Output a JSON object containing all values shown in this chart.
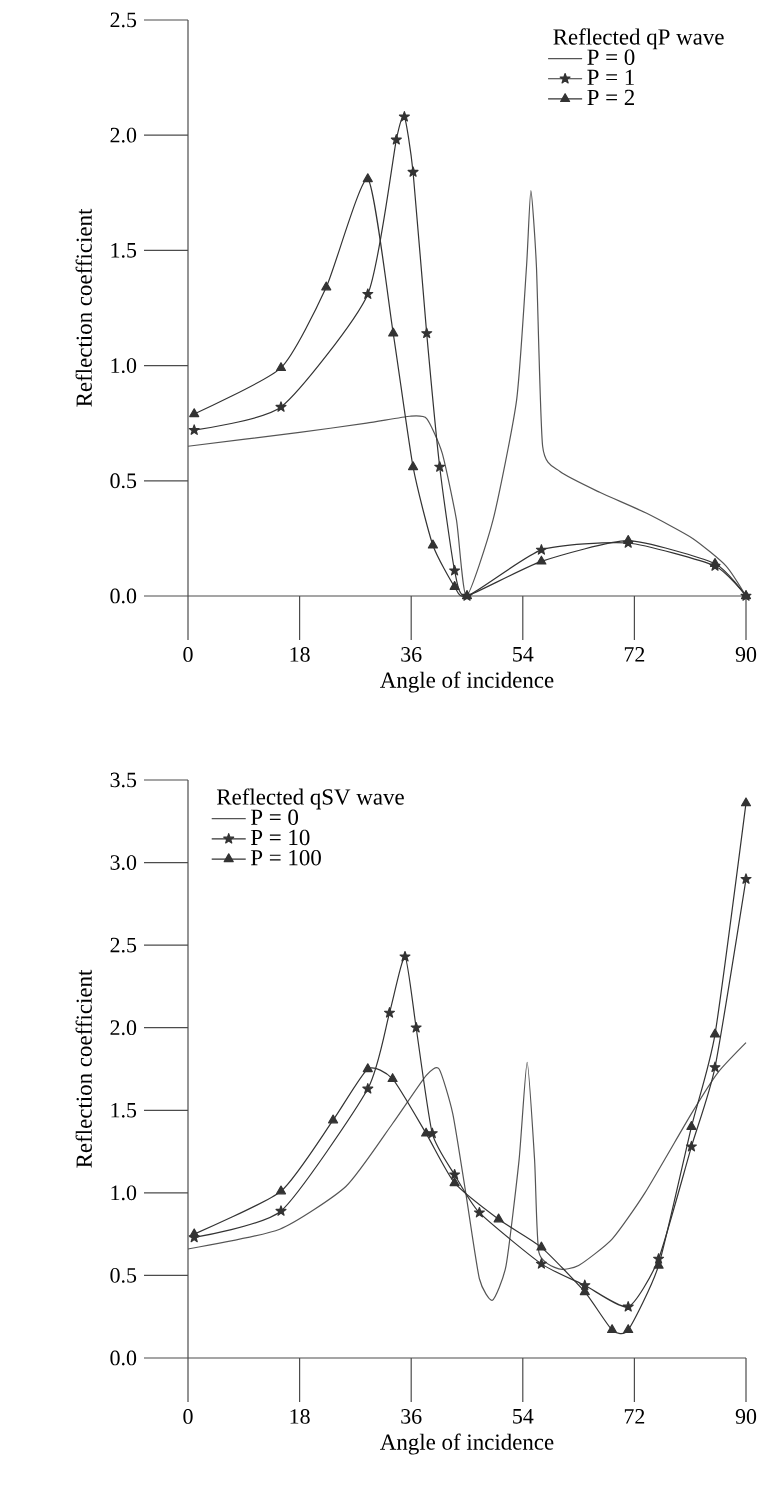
{
  "chart_data": [
    {
      "type": "line",
      "xlabel": "Angle of incidence",
      "ylabel": "Reflection coefficient",
      "legend_title": "Reflected qP wave",
      "legend": "top right",
      "xlim": [
        0,
        90
      ],
      "ylim": [
        0,
        2.5
      ],
      "xticks": [
        0,
        18,
        36,
        54,
        72,
        90
      ],
      "yticks": [
        {
          "value": 0,
          "label": "0.0"
        },
        0.5,
        {
          "value": 1,
          "label": "1.0"
        },
        1.5,
        {
          "value": 2,
          "label": "2.0"
        },
        2.5
      ],
      "series": [
        {
          "name": "P = 0",
          "color": "#555555",
          "marker": "none",
          "x": [
            0,
            18,
            28.8,
            35.8,
            38.5,
            41,
            43.3,
            44.9,
            49.2,
            53,
            54.6,
            55.3,
            56.2,
            57.2,
            60,
            66.4,
            73.9,
            81.4,
            86.8,
            90
          ],
          "values": [
            0.65,
            0.71,
            0.75,
            0.78,
            0.77,
            0.62,
            0.33,
            0.0,
            0.33,
            0.85,
            1.43,
            1.76,
            1.43,
            0.65,
            0.54,
            0.45,
            0.36,
            0.25,
            0.13,
            0.0
          ]
        },
        {
          "name": "P = 1",
          "color": "#333333",
          "marker": "star",
          "x": [
            1,
            15,
            29,
            33.6,
            34.9,
            36.3,
            38.5,
            40.6,
            43,
            45,
            57,
            71,
            85,
            90
          ],
          "values": [
            0.72,
            0.82,
            1.31,
            1.98,
            2.08,
            1.84,
            1.14,
            0.56,
            0.11,
            0.0,
            0.2,
            0.23,
            0.13,
            0.0
          ]
        },
        {
          "name": "P = 2",
          "color": "#333333",
          "marker": "triangle",
          "x": [
            1,
            15,
            22.3,
            29,
            33.1,
            36.3,
            39.5,
            43,
            45,
            57,
            71,
            85,
            90
          ],
          "values": [
            0.79,
            0.99,
            1.34,
            1.81,
            1.14,
            0.56,
            0.22,
            0.04,
            0.0,
            0.15,
            0.24,
            0.14,
            0.0
          ]
        }
      ]
    },
    {
      "type": "line",
      "xlabel": "Angle of incidence",
      "ylabel": "Reflection coefficient",
      "legend_title": "Reflected qSV wave",
      "legend": "top left",
      "xlim": [
        0,
        90
      ],
      "ylim": [
        0,
        3.5
      ],
      "xticks": [
        0,
        18,
        36,
        54,
        72,
        90
      ],
      "yticks": [
        {
          "value": 0,
          "label": "0.0"
        },
        0.5,
        {
          "value": 1,
          "label": "1.0"
        },
        1.5,
        {
          "value": 2,
          "label": "2.0"
        },
        2.5,
        {
          "value": 3,
          "label": "3.0"
        },
        3.5
      ],
      "series": [
        {
          "name": "P = 0",
          "color": "#555555",
          "marker": "none",
          "x": [
            0,
            14.8,
            25.5,
            33,
            38.4,
            40.5,
            42.7,
            44.8,
            47,
            49.1,
            51.3,
            53.4,
            54.7,
            55.9,
            56.6,
            59.8,
            63,
            68.4,
            73.7,
            81.2,
            85.5,
            90
          ],
          "values": [
            0.66,
            0.78,
            1.04,
            1.42,
            1.71,
            1.75,
            1.48,
            1.0,
            0.48,
            0.35,
            0.56,
            1.2,
            1.79,
            1.2,
            0.64,
            0.54,
            0.56,
            0.72,
            1.0,
            1.48,
            1.73,
            1.91
          ]
        },
        {
          "name": "P = 10",
          "color": "#333333",
          "marker": "star",
          "x": [
            1,
            15,
            29,
            32.5,
            35,
            36.8,
            39.4,
            43,
            47,
            57,
            64,
            71,
            75.9,
            81.2,
            85,
            90
          ],
          "values": [
            0.73,
            0.89,
            1.63,
            2.09,
            2.43,
            2.0,
            1.36,
            1.11,
            0.88,
            0.57,
            0.44,
            0.31,
            0.6,
            1.28,
            1.76,
            2.9
          ]
        },
        {
          "name": "P = 100",
          "color": "#333333",
          "marker": "triangle",
          "x": [
            1,
            15,
            23.4,
            29,
            33,
            38.4,
            43,
            50.1,
            57,
            64,
            68.4,
            71,
            75.9,
            81.2,
            85,
            90
          ],
          "values": [
            0.75,
            1.01,
            1.44,
            1.75,
            1.69,
            1.36,
            1.06,
            0.84,
            0.67,
            0.4,
            0.17,
            0.17,
            0.56,
            1.4,
            1.96,
            3.36
          ]
        }
      ]
    }
  ]
}
